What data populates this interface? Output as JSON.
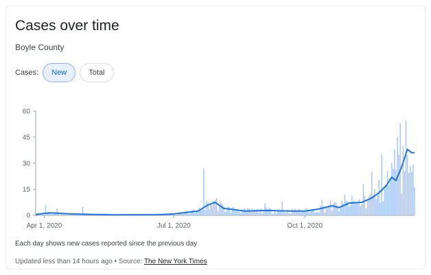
{
  "header": {
    "title": "Cases over time",
    "subtitle": "Boyle County"
  },
  "toggle": {
    "label": "Cases:",
    "options": [
      "New",
      "Total"
    ],
    "selected": "New"
  },
  "footer": {
    "note": "Each day shows new cases reported since the previous day",
    "updated": "Updated less than 14 hours ago",
    "separator": "•",
    "source_prefix": "Source:",
    "source_link": "The New York Times"
  },
  "colors": {
    "bar": "#a8c7fa",
    "line": "#1a73e8",
    "chip_accent": "#1967d2"
  },
  "chart_data": {
    "type": "bar",
    "x_start": "2020-03-26",
    "x_end": "2020-12-17",
    "xticks": [
      {
        "date": "2020-04-01",
        "label": "Apr 1, 2020"
      },
      {
        "date": "2020-07-01",
        "label": "Jul 1, 2020"
      },
      {
        "date": "2020-10-01",
        "label": "Oct 1, 2020"
      }
    ],
    "yticks": [
      0,
      15,
      30,
      45,
      60
    ],
    "ylim": [
      0,
      60
    ],
    "grid": false,
    "bars_note": "daily new cases; blue line is the 7-day average",
    "spikes": [
      {
        "date": "2020-04-02",
        "value": 6
      },
      {
        "date": "2020-04-10",
        "value": 4
      },
      {
        "date": "2020-04-28",
        "value": 5
      },
      {
        "date": "2020-07-22",
        "value": 27
      },
      {
        "date": "2020-07-29",
        "value": 8
      },
      {
        "date": "2020-09-03",
        "value": 7
      },
      {
        "date": "2020-09-15",
        "value": 8
      },
      {
        "date": "2020-10-13",
        "value": 9
      },
      {
        "date": "2020-10-29",
        "value": 12
      },
      {
        "date": "2020-11-11",
        "value": 18
      },
      {
        "date": "2020-11-17",
        "value": 25
      },
      {
        "date": "2020-11-24",
        "value": 35
      },
      {
        "date": "2020-12-01",
        "value": 30
      },
      {
        "date": "2020-12-03",
        "value": 38
      },
      {
        "date": "2020-12-05",
        "value": 45
      },
      {
        "date": "2020-12-07",
        "value": 53
      },
      {
        "date": "2020-12-09",
        "value": 40
      },
      {
        "date": "2020-12-12",
        "value": 35
      },
      {
        "date": "2020-12-14",
        "value": 28
      },
      {
        "date": "2020-12-16",
        "value": 29
      }
    ],
    "average": [
      {
        "date": "2020-03-26",
        "value": 0.5
      },
      {
        "date": "2020-04-05",
        "value": 1.5
      },
      {
        "date": "2020-04-20",
        "value": 0.8
      },
      {
        "date": "2020-05-20",
        "value": 0.3
      },
      {
        "date": "2020-06-20",
        "value": 0.4
      },
      {
        "date": "2020-07-01",
        "value": 0.8
      },
      {
        "date": "2020-07-18",
        "value": 2.5
      },
      {
        "date": "2020-07-25",
        "value": 6
      },
      {
        "date": "2020-07-30",
        "value": 7.5
      },
      {
        "date": "2020-08-05",
        "value": 4
      },
      {
        "date": "2020-08-20",
        "value": 2.5
      },
      {
        "date": "2020-09-05",
        "value": 2.8
      },
      {
        "date": "2020-09-20",
        "value": 2.5
      },
      {
        "date": "2020-10-01",
        "value": 2.5
      },
      {
        "date": "2020-10-10",
        "value": 3.5
      },
      {
        "date": "2020-10-20",
        "value": 5.5
      },
      {
        "date": "2020-10-25",
        "value": 4.5
      },
      {
        "date": "2020-11-01",
        "value": 7
      },
      {
        "date": "2020-11-10",
        "value": 7.5
      },
      {
        "date": "2020-11-17",
        "value": 10
      },
      {
        "date": "2020-11-22",
        "value": 13
      },
      {
        "date": "2020-11-27",
        "value": 17
      },
      {
        "date": "2020-12-01",
        "value": 22
      },
      {
        "date": "2020-12-04",
        "value": 20
      },
      {
        "date": "2020-12-08",
        "value": 28
      },
      {
        "date": "2020-12-12",
        "value": 38
      },
      {
        "date": "2020-12-15",
        "value": 36
      },
      {
        "date": "2020-12-17",
        "value": 36
      }
    ]
  }
}
